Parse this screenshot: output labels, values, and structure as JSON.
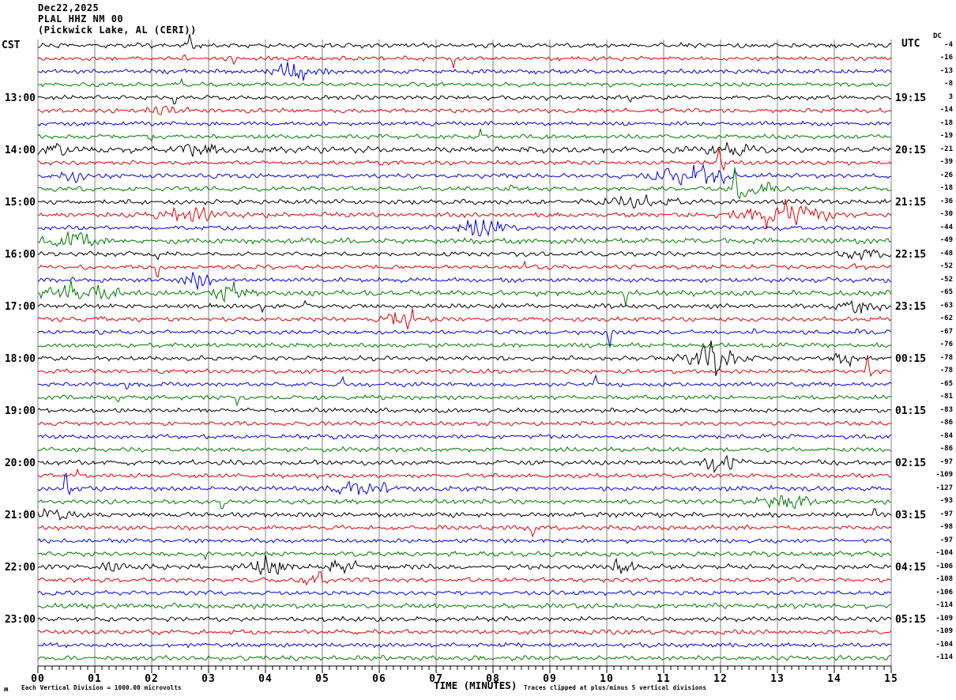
{
  "header": {
    "date": "Dec22,2025",
    "station": "PLAL HHZ NM 00",
    "location": "(Pickwick Lake, AL (CERI))"
  },
  "axes": {
    "left_label": "CST",
    "right_label": "UTC",
    "dc_label": "DC",
    "x_title": "TIME (MINUTES)",
    "x_ticks": [
      "00",
      "01",
      "02",
      "03",
      "04",
      "05",
      "06",
      "07",
      "08",
      "09",
      "10",
      "11",
      "12",
      "13",
      "14",
      "15"
    ],
    "minor_ticks_per_minute": 8
  },
  "footer": {
    "left_note": "Each Vertical Division = 1000.00 microvolts",
    "right_note": "Traces clipped at plus/minus 5 vertical divisions",
    "mark_glyph": "ʍ"
  },
  "colors": {
    "background": "#ffffff",
    "grid": "#808080",
    "axis": "#000000",
    "trace_map": {
      "black": "#000000",
      "red": "#dd0000",
      "blue": "#0000dd",
      "green": "#007700"
    }
  },
  "chart_data": {
    "type": "line",
    "title": "PLAL HHZ NM 00 helicorder",
    "x_range_minutes": [
      0,
      15
    ],
    "minutes_per_row": 15,
    "vertical_division_microvolts": 1000.0,
    "clip_divisions": 5,
    "rows": [
      {
        "cst": "",
        "utc": "",
        "dc": -4,
        "color": "black",
        "amp": 2.2,
        "events": [
          {
            "m": 2.67,
            "a": 16,
            "w": 0.04
          },
          {
            "m": 2.75,
            "a": -6,
            "w": 0.04
          }
        ]
      },
      {
        "cst": "",
        "utc": "",
        "dc": -16,
        "color": "red",
        "amp": 2.0,
        "events": [
          {
            "m": 2.57,
            "a": 6,
            "w": 0.04
          },
          {
            "m": 3.45,
            "a": -8,
            "w": 0.04
          },
          {
            "m": 7.3,
            "a": -12,
            "w": 0.04
          }
        ]
      },
      {
        "cst": "",
        "utc": "",
        "dc": -13,
        "color": "blue",
        "amp": 2.0,
        "events": [
          {
            "m": 4.5,
            "a": 7,
            "w": 0.3
          }
        ]
      },
      {
        "cst": "",
        "utc": "",
        "dc": -8,
        "color": "green",
        "amp": 1.9,
        "events": [
          {
            "m": 2.52,
            "a": 8,
            "w": 0.04
          }
        ]
      },
      {
        "cst": "13:00",
        "utc": "19:15",
        "dc": 3,
        "color": "black",
        "amp": 2.0,
        "events": [
          {
            "m": 2.4,
            "a": -14,
            "w": 0.04
          },
          {
            "m": 0.23,
            "a": 4,
            "w": 0.03
          },
          {
            "m": 10.4,
            "a": -5,
            "w": 0.03
          },
          {
            "m": 14.1,
            "a": 7,
            "w": 0.04
          }
        ]
      },
      {
        "cst": "",
        "utc": "",
        "dc": -14,
        "color": "red",
        "amp": 2.0,
        "events": [
          {
            "m": 2.3,
            "a": 5,
            "w": 0.2
          }
        ]
      },
      {
        "cst": "",
        "utc": "",
        "dc": -18,
        "color": "blue",
        "amp": 1.9,
        "events": [
          {
            "m": 3.03,
            "a": -5,
            "w": 0.04
          }
        ]
      },
      {
        "cst": "",
        "utc": "",
        "dc": -19,
        "color": "green",
        "amp": 1.9,
        "events": [
          {
            "m": 1.99,
            "a": -6,
            "w": 0.04
          },
          {
            "m": 7.78,
            "a": 10,
            "w": 0.04
          }
        ]
      },
      {
        "cst": "14:00",
        "utc": "20:15",
        "dc": -21,
        "color": "black",
        "amp": 2.8,
        "events": [
          {
            "m": 0.25,
            "a": 5,
            "w": 0.15
          },
          {
            "m": 2.8,
            "a": 5,
            "w": 0.3
          },
          {
            "m": 12.2,
            "a": 5,
            "w": 0.3
          }
        ]
      },
      {
        "cst": "",
        "utc": "",
        "dc": -39,
        "color": "red",
        "amp": 2.0,
        "events": [
          {
            "m": 11.97,
            "a": 22,
            "w": 0.05
          },
          {
            "m": 12.05,
            "a": -10,
            "w": 0.04
          },
          {
            "m": 1.3,
            "a": 5,
            "w": 0.04
          }
        ]
      },
      {
        "cst": "",
        "utc": "",
        "dc": -26,
        "color": "blue",
        "amp": 2.1,
        "events": [
          {
            "m": 11.6,
            "a": 9,
            "w": 0.45
          },
          {
            "m": 0.6,
            "a": 4,
            "w": 0.15
          }
        ]
      },
      {
        "cst": "",
        "utc": "",
        "dc": -18,
        "color": "green",
        "amp": 2.0,
        "events": [
          {
            "m": 12.25,
            "a": 30,
            "w": 0.05
          },
          {
            "m": 12.33,
            "a": -22,
            "w": 0.05
          },
          {
            "m": 12.6,
            "a": 6,
            "w": 0.3
          },
          {
            "m": 8.32,
            "a": 12,
            "w": 0.04
          }
        ]
      },
      {
        "cst": "15:00",
        "utc": "21:15",
        "dc": -36,
        "color": "black",
        "amp": 2.2,
        "events": [
          {
            "m": 10.5,
            "a": 4,
            "w": 0.4
          }
        ]
      },
      {
        "cst": "",
        "utc": "",
        "dc": -30,
        "color": "red",
        "amp": 2.1,
        "events": [
          {
            "m": 2.7,
            "a": 6,
            "w": 0.4
          },
          {
            "m": 13.1,
            "a": 11,
            "w": 0.5
          },
          {
            "m": 5.05,
            "a": 7,
            "w": 0.04
          }
        ]
      },
      {
        "cst": "",
        "utc": "",
        "dc": -44,
        "color": "blue",
        "amp": 2.0,
        "events": [
          {
            "m": 7.85,
            "a": 9,
            "w": 0.25
          }
        ]
      },
      {
        "cst": "",
        "utc": "",
        "dc": -49,
        "color": "green",
        "amp": 2.4,
        "events": [
          {
            "m": 0.6,
            "a": 7,
            "w": 0.3
          }
        ]
      },
      {
        "cst": "16:00",
        "utc": "22:15",
        "dc": -48,
        "color": "black",
        "amp": 2.1,
        "events": [
          {
            "m": 2.1,
            "a": -10,
            "w": 0.04
          },
          {
            "m": 14.5,
            "a": 5,
            "w": 0.2
          }
        ]
      },
      {
        "cst": "",
        "utc": "",
        "dc": -52,
        "color": "red",
        "amp": 2.0,
        "events": [
          {
            "m": 2.1,
            "a": -20,
            "w": 0.05
          },
          {
            "m": 8.55,
            "a": 7,
            "w": 0.04
          },
          {
            "m": 14.35,
            "a": 6,
            "w": 0.04
          }
        ]
      },
      {
        "cst": "",
        "utc": "",
        "dc": -52,
        "color": "blue",
        "amp": 2.0,
        "events": [
          {
            "m": 2.8,
            "a": 12,
            "w": 0.12
          },
          {
            "m": 13.9,
            "a": 7,
            "w": 0.04
          },
          {
            "m": 0.6,
            "a": 5,
            "w": 0.04
          }
        ]
      },
      {
        "cst": "",
        "utc": "",
        "dc": -65,
        "color": "green",
        "amp": 2.5,
        "events": [
          {
            "m": 0.7,
            "a": 8,
            "w": 0.4
          },
          {
            "m": 3.45,
            "a": 8,
            "w": 0.2
          },
          {
            "m": 10.33,
            "a": -14,
            "w": 0.04
          }
        ]
      },
      {
        "cst": "17:00",
        "utc": "23:15",
        "dc": -63,
        "color": "black",
        "amp": 2.1,
        "events": [
          {
            "m": 3.95,
            "a": -9,
            "w": 0.04
          },
          {
            "m": 4.7,
            "a": 9,
            "w": 0.04
          },
          {
            "m": 14.6,
            "a": 7,
            "w": 0.25
          },
          {
            "m": 10.9,
            "a": -5,
            "w": 0.03
          }
        ]
      },
      {
        "cst": "",
        "utc": "",
        "dc": -62,
        "color": "red",
        "amp": 2.0,
        "events": [
          {
            "m": 1.1,
            "a": 6,
            "w": 0.04
          },
          {
            "m": 6.45,
            "a": 9,
            "w": 0.2
          }
        ]
      },
      {
        "cst": "",
        "utc": "",
        "dc": -67,
        "color": "blue",
        "amp": 1.9,
        "events": [
          {
            "m": 10.05,
            "a": -20,
            "w": 0.05
          },
          {
            "m": 12.6,
            "a": 6,
            "w": 0.04
          },
          {
            "m": 14.4,
            "a": 5,
            "w": 0.04
          }
        ]
      },
      {
        "cst": "",
        "utc": "",
        "dc": -76,
        "color": "green",
        "amp": 2.0,
        "events": []
      },
      {
        "cst": "18:00",
        "utc": "00:15",
        "dc": -78,
        "color": "black",
        "amp": 2.1,
        "events": [
          {
            "m": 11.85,
            "a": 12,
            "w": 0.3
          },
          {
            "m": 11.83,
            "a": 34,
            "w": 0.05
          },
          {
            "m": 11.92,
            "a": -14,
            "w": 0.04
          },
          {
            "m": 14.2,
            "a": 5,
            "w": 0.15
          }
        ]
      },
      {
        "cst": "",
        "utc": "",
        "dc": -78,
        "color": "red",
        "amp": 2.0,
        "events": [
          {
            "m": 14.58,
            "a": 20,
            "w": 0.05
          },
          {
            "m": 14.64,
            "a": -7,
            "w": 0.04
          }
        ]
      },
      {
        "cst": "",
        "utc": "",
        "dc": -65,
        "color": "blue",
        "amp": 1.9,
        "events": [
          {
            "m": 5.35,
            "a": 12,
            "w": 0.04
          },
          {
            "m": 1.57,
            "a": -8,
            "w": 0.04
          },
          {
            "m": 9.8,
            "a": 12,
            "w": 0.05
          }
        ]
      },
      {
        "cst": "",
        "utc": "",
        "dc": -81,
        "color": "green",
        "amp": 2.0,
        "events": [
          {
            "m": 1.41,
            "a": -7,
            "w": 0.04
          },
          {
            "m": 3.5,
            "a": -12,
            "w": 0.05
          }
        ]
      },
      {
        "cst": "19:00",
        "utc": "01:15",
        "dc": -83,
        "color": "black",
        "amp": 2.1,
        "events": []
      },
      {
        "cst": "",
        "utc": "",
        "dc": -86,
        "color": "red",
        "amp": 2.0,
        "events": []
      },
      {
        "cst": "",
        "utc": "",
        "dc": -84,
        "color": "blue",
        "amp": 1.9,
        "events": [
          {
            "m": 5.2,
            "a": -6,
            "w": 0.04
          }
        ]
      },
      {
        "cst": "",
        "utc": "",
        "dc": -86,
        "color": "green",
        "amp": 2.0,
        "events": []
      },
      {
        "cst": "20:00",
        "utc": "02:15",
        "dc": -97,
        "color": "black",
        "amp": 2.2,
        "events": [
          {
            "m": 12.0,
            "a": 9,
            "w": 0.2
          },
          {
            "m": 12.05,
            "a": 12,
            "w": 0.05
          }
        ]
      },
      {
        "cst": "",
        "utc": "",
        "dc": -109,
        "color": "red",
        "amp": 2.0,
        "events": [
          {
            "m": 0.69,
            "a": 6,
            "w": 0.04
          }
        ]
      },
      {
        "cst": "",
        "utc": "",
        "dc": -127,
        "color": "blue",
        "amp": 2.2,
        "events": [
          {
            "m": 0.49,
            "a": 28,
            "w": 0.05
          },
          {
            "m": 0.55,
            "a": -8,
            "w": 0.04
          },
          {
            "m": 5.6,
            "a": 5,
            "w": 0.3
          },
          {
            "m": 5.54,
            "a": 10,
            "w": 0.04
          },
          {
            "m": 6.1,
            "a": 10,
            "w": 0.04
          }
        ]
      },
      {
        "cst": "",
        "utc": "",
        "dc": -93,
        "color": "green",
        "amp": 2.1,
        "events": [
          {
            "m": 3.24,
            "a": -13,
            "w": 0.05
          },
          {
            "m": 13.2,
            "a": 6,
            "w": 0.3
          }
        ]
      },
      {
        "cst": "21:00",
        "utc": "03:15",
        "dc": -97,
        "color": "black",
        "amp": 2.1,
        "events": [
          {
            "m": 14.7,
            "a": 10,
            "w": 0.05
          },
          {
            "m": 0.3,
            "a": 5,
            "w": 0.2
          }
        ]
      },
      {
        "cst": "",
        "utc": "",
        "dc": -98,
        "color": "red",
        "amp": 2.0,
        "events": [
          {
            "m": 8.7,
            "a": -13,
            "w": 0.05
          }
        ]
      },
      {
        "cst": "",
        "utc": "",
        "dc": -97,
        "color": "blue",
        "amp": 1.9,
        "events": []
      },
      {
        "cst": "",
        "utc": "",
        "dc": -104,
        "color": "green",
        "amp": 2.2,
        "events": [
          {
            "m": 2.94,
            "a": -8,
            "w": 0.04
          }
        ]
      },
      {
        "cst": "22:00",
        "utc": "04:15",
        "dc": -106,
        "color": "black",
        "amp": 2.3,
        "events": [
          {
            "m": 1.2,
            "a": 5,
            "w": 0.15
          },
          {
            "m": 4.0,
            "a": 9,
            "w": 0.2
          },
          {
            "m": 5.35,
            "a": 9,
            "w": 0.15
          },
          {
            "m": 10.3,
            "a": 6,
            "w": 0.15
          }
        ]
      },
      {
        "cst": "",
        "utc": "",
        "dc": -108,
        "color": "red",
        "amp": 2.1,
        "events": [
          {
            "m": 4.9,
            "a": 7,
            "w": 0.15
          }
        ]
      },
      {
        "cst": "",
        "utc": "",
        "dc": -106,
        "color": "blue",
        "amp": 2.0,
        "events": []
      },
      {
        "cst": "",
        "utc": "",
        "dc": -114,
        "color": "green",
        "amp": 2.3,
        "events": []
      },
      {
        "cst": "23:00",
        "utc": "05:15",
        "dc": -109,
        "color": "black",
        "amp": 2.2,
        "events": []
      },
      {
        "cst": "",
        "utc": "",
        "dc": -109,
        "color": "red",
        "amp": 2.1,
        "events": []
      },
      {
        "cst": "",
        "utc": "",
        "dc": -104,
        "color": "blue",
        "amp": 2.0,
        "events": []
      },
      {
        "cst": "",
        "utc": "",
        "dc": -114,
        "color": "green",
        "amp": 2.2,
        "events": []
      }
    ]
  }
}
